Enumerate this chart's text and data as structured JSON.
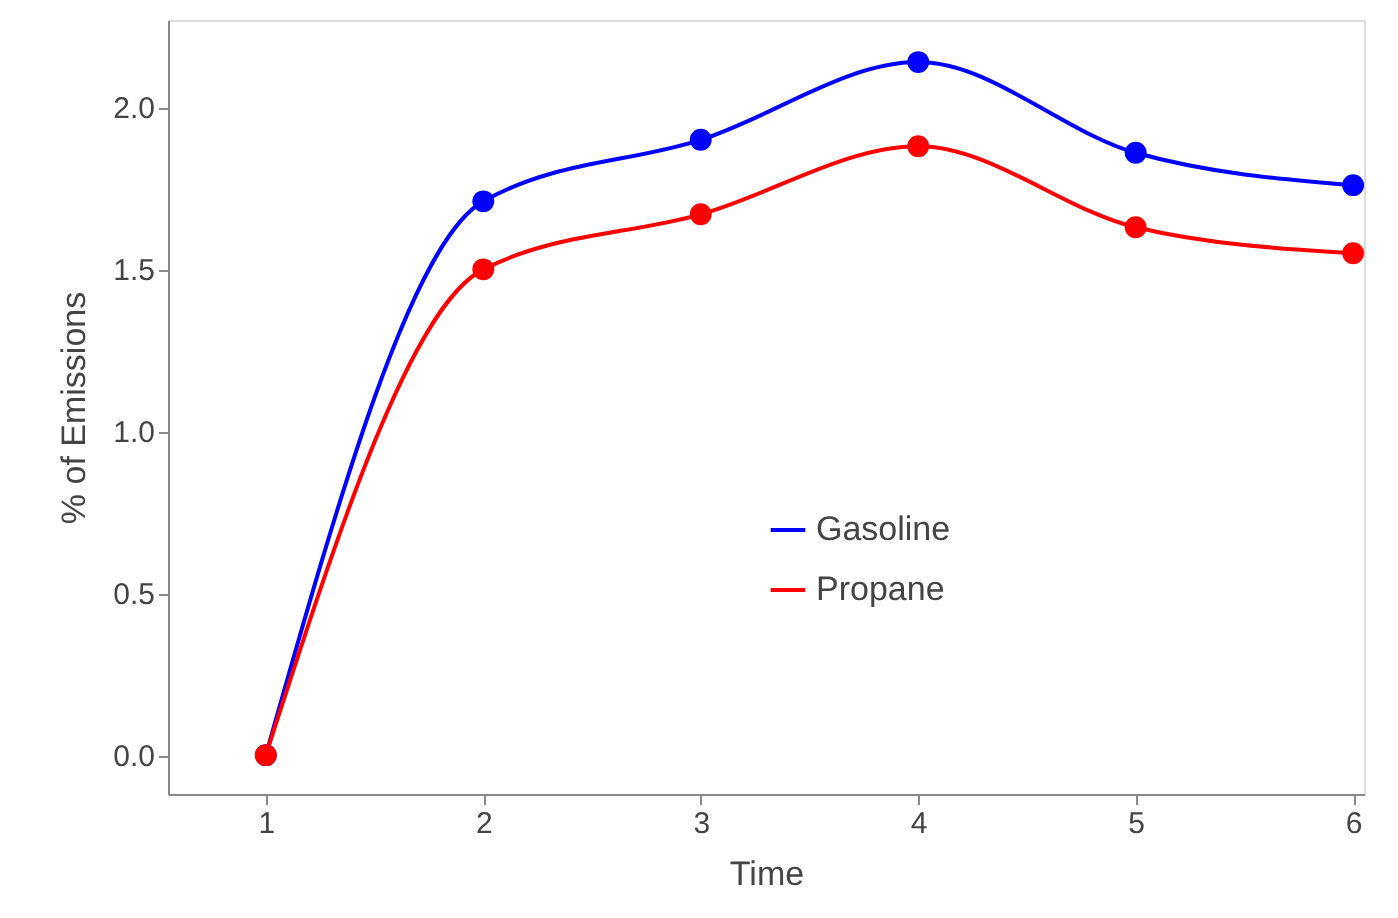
{
  "chart_data": {
    "type": "line",
    "xlabel": "Time",
    "ylabel": "% of Emissions",
    "x": [
      1,
      2,
      3,
      4,
      5,
      6
    ],
    "series": [
      {
        "name": "Gasoline",
        "color": "#0000ff",
        "values": [
          0,
          1.71,
          1.9,
          2.14,
          1.86,
          1.76
        ]
      },
      {
        "name": "Propane",
        "color": "#ff0000",
        "values": [
          0,
          1.5,
          1.67,
          1.88,
          1.63,
          1.55
        ]
      }
    ],
    "xlim": [
      0.55,
      6.05
    ],
    "xticks": [
      1,
      2,
      3,
      4,
      5,
      6
    ],
    "ylim": [
      -0.12,
      2.27
    ],
    "yticks": [
      {
        "value": 0,
        "label": "0.0"
      },
      {
        "value": 0.5,
        "label": "0.5"
      },
      {
        "value": 1,
        "label": "1.0"
      },
      {
        "value": 1.5,
        "label": "1.5"
      },
      {
        "value": 2,
        "label": "2.0"
      }
    ],
    "marker": "circle",
    "line_style": "solid",
    "legend": "bottom",
    "grid": false
  }
}
